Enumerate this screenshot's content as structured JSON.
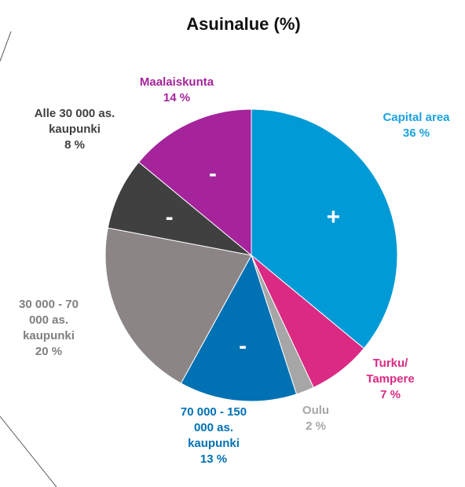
{
  "chart_data": {
    "type": "pie",
    "title": "Asuinalue (%)",
    "categories": [
      "Capital area",
      "Turku/ Tampere",
      "Oulu",
      "70 000 - 150 000 as. kaupunki",
      "30 000 - 70 000 as. kaupunki",
      "Alle 30 000 as. kaupunki",
      "Maalaiskunta"
    ],
    "values": [
      36,
      7,
      2,
      13,
      20,
      8,
      14
    ],
    "value_labels": [
      "36 %",
      "7 %",
      "2 %",
      "13 %",
      "20 %",
      "8 %",
      "14 %"
    ],
    "colors": [
      "#009ad6",
      "#da2a83",
      "#a6a6a6",
      "#0071b3",
      "#8c8585",
      "#404040",
      "#a5249b"
    ],
    "label_colors": [
      "#1aa3df",
      "#da2a83",
      "#a6a6a6",
      "#0071b3",
      "#7f7f7f",
      "#404040",
      "#a5249b"
    ],
    "annotations": [
      {
        "text": "+",
        "slice": 0
      },
      {
        "text": "-",
        "slice": 3
      },
      {
        "text": "-",
        "slice": 5
      },
      {
        "text": "-",
        "slice": 6
      }
    ]
  }
}
